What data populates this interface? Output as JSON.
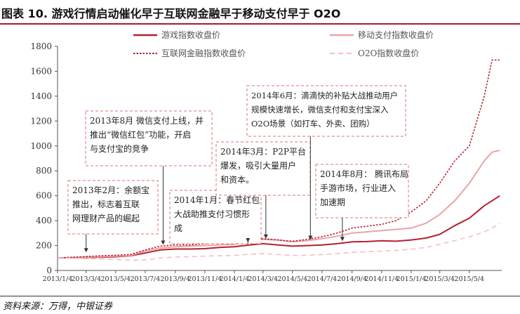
{
  "title": "图表 10. 游戏行情启动催化早于互联网金融早于移动支付早于 O2O",
  "source": "资料来源：万得，中银证券",
  "colors": {
    "accent": "#a71d2a",
    "game": "#b3202e",
    "mobile_pay": "#eaa4a4",
    "internet_finance": "#b3202e",
    "o2o": "#f2c0c0",
    "annotation_border": "#e07070"
  },
  "chart_data": {
    "type": "line",
    "title": "",
    "xlabel": "",
    "ylabel": "",
    "ylim": [
      0,
      1800
    ],
    "yticks": [
      0,
      200,
      400,
      600,
      800,
      1000,
      1200,
      1400,
      1600,
      1800
    ],
    "xlim": [
      "2013-01-04",
      "2015-07-10"
    ],
    "xticks": [
      "2013/1/4",
      "2013/3/4",
      "2013/5/4",
      "2013/7/4",
      "2013/9/4",
      "2013/11/4",
      "2014/1/4",
      "2014/3/4",
      "2014/5/4",
      "2014/7/4",
      "2014/9/4",
      "2014/11/4",
      "2015/1/4",
      "2015/3/4",
      "2015/5/4"
    ],
    "grid": false,
    "legend_placement": "top",
    "series": [
      {
        "name": "游戏指数收盘价",
        "style": "solid",
        "color": "#b3202e",
        "points": [
          [
            "2013-01-04",
            100
          ],
          [
            "2013-02-04",
            103
          ],
          [
            "2013-03-04",
            105
          ],
          [
            "2013-04-04",
            106
          ],
          [
            "2013-05-04",
            110
          ],
          [
            "2013-06-04",
            118
          ],
          [
            "2013-07-04",
            140
          ],
          [
            "2013-08-04",
            165
          ],
          [
            "2013-09-04",
            172
          ],
          [
            "2013-10-04",
            172
          ],
          [
            "2013-11-04",
            175
          ],
          [
            "2013-12-04",
            185
          ],
          [
            "2014-01-04",
            190
          ],
          [
            "2014-02-04",
            205
          ],
          [
            "2014-03-04",
            215
          ],
          [
            "2014-04-04",
            205
          ],
          [
            "2014-05-04",
            195
          ],
          [
            "2014-06-04",
            200
          ],
          [
            "2014-07-04",
            205
          ],
          [
            "2014-08-04",
            215
          ],
          [
            "2014-09-04",
            230
          ],
          [
            "2014-10-04",
            232
          ],
          [
            "2014-11-04",
            238
          ],
          [
            "2014-12-04",
            235
          ],
          [
            "2015-01-04",
            245
          ],
          [
            "2015-02-04",
            260
          ],
          [
            "2015-03-04",
            290
          ],
          [
            "2015-04-04",
            360
          ],
          [
            "2015-05-04",
            420
          ],
          [
            "2015-06-04",
            520
          ],
          [
            "2015-06-20",
            560
          ],
          [
            "2015-07-06",
            600
          ]
        ]
      },
      {
        "name": "移动支付指数收盘价",
        "style": "solid",
        "color": "#eaa4a4",
        "points": [
          [
            "2013-01-04",
            100
          ],
          [
            "2013-02-04",
            104
          ],
          [
            "2013-03-04",
            108
          ],
          [
            "2013-04-04",
            110
          ],
          [
            "2013-05-04",
            115
          ],
          [
            "2013-06-04",
            120
          ],
          [
            "2013-07-04",
            155
          ],
          [
            "2013-08-04",
            180
          ],
          [
            "2013-09-04",
            190
          ],
          [
            "2013-10-04",
            195
          ],
          [
            "2013-11-04",
            200
          ],
          [
            "2013-12-04",
            205
          ],
          [
            "2014-01-04",
            210
          ],
          [
            "2014-02-04",
            230
          ],
          [
            "2014-03-04",
            250
          ],
          [
            "2014-04-04",
            245
          ],
          [
            "2014-05-04",
            230
          ],
          [
            "2014-06-04",
            240
          ],
          [
            "2014-07-04",
            255
          ],
          [
            "2014-08-04",
            275
          ],
          [
            "2014-09-04",
            300
          ],
          [
            "2014-10-04",
            310
          ],
          [
            "2014-11-04",
            320
          ],
          [
            "2014-12-04",
            330
          ],
          [
            "2015-01-04",
            340
          ],
          [
            "2015-02-04",
            380
          ],
          [
            "2015-03-04",
            450
          ],
          [
            "2015-04-04",
            560
          ],
          [
            "2015-05-04",
            700
          ],
          [
            "2015-06-04",
            880
          ],
          [
            "2015-06-20",
            950
          ],
          [
            "2015-07-06",
            965
          ]
        ]
      },
      {
        "name": "互联网金融指数收盘价",
        "style": "dotted",
        "color": "#b3202e",
        "points": [
          [
            "2013-01-04",
            100
          ],
          [
            "2013-02-04",
            106
          ],
          [
            "2013-03-04",
            112
          ],
          [
            "2013-04-04",
            118
          ],
          [
            "2013-05-04",
            122
          ],
          [
            "2013-06-04",
            128
          ],
          [
            "2013-07-04",
            165
          ],
          [
            "2013-08-04",
            195
          ],
          [
            "2013-09-04",
            205
          ],
          [
            "2013-10-04",
            205
          ],
          [
            "2013-11-04",
            215
          ],
          [
            "2013-12-04",
            225
          ],
          [
            "2014-01-04",
            235
          ],
          [
            "2014-02-04",
            250
          ],
          [
            "2014-03-04",
            255
          ],
          [
            "2014-04-04",
            245
          ],
          [
            "2014-05-04",
            235
          ],
          [
            "2014-06-04",
            250
          ],
          [
            "2014-07-04",
            270
          ],
          [
            "2014-08-04",
            300
          ],
          [
            "2014-09-04",
            340
          ],
          [
            "2014-10-04",
            355
          ],
          [
            "2014-11-04",
            370
          ],
          [
            "2014-12-04",
            400
          ],
          [
            "2015-01-04",
            470
          ],
          [
            "2015-02-04",
            560
          ],
          [
            "2015-03-04",
            700
          ],
          [
            "2015-04-04",
            880
          ],
          [
            "2015-05-04",
            1000
          ],
          [
            "2015-06-04",
            1400
          ],
          [
            "2015-06-20",
            1690
          ],
          [
            "2015-07-06",
            1690
          ]
        ]
      },
      {
        "name": "O2O指数收盘价",
        "style": "dashed",
        "color": "#f2c0c0",
        "points": [
          [
            "2013-01-04",
            100
          ],
          [
            "2013-02-04",
            98
          ],
          [
            "2013-03-04",
            95
          ],
          [
            "2013-04-04",
            92
          ],
          [
            "2013-05-04",
            88
          ],
          [
            "2013-06-04",
            82
          ],
          [
            "2013-07-04",
            85
          ],
          [
            "2013-08-04",
            100
          ],
          [
            "2013-09-04",
            108
          ],
          [
            "2013-10-04",
            110
          ],
          [
            "2013-11-04",
            115
          ],
          [
            "2013-12-04",
            118
          ],
          [
            "2014-01-04",
            120
          ],
          [
            "2014-02-04",
            130
          ],
          [
            "2014-03-04",
            135
          ],
          [
            "2014-04-04",
            128
          ],
          [
            "2014-05-04",
            120
          ],
          [
            "2014-06-04",
            122
          ],
          [
            "2014-07-04",
            128
          ],
          [
            "2014-08-04",
            135
          ],
          [
            "2014-09-04",
            145
          ],
          [
            "2014-10-04",
            150
          ],
          [
            "2014-11-04",
            155
          ],
          [
            "2014-12-04",
            160
          ],
          [
            "2015-01-04",
            170
          ],
          [
            "2015-02-04",
            185
          ],
          [
            "2015-03-04",
            210
          ],
          [
            "2015-04-04",
            240
          ],
          [
            "2015-05-04",
            270
          ],
          [
            "2015-06-04",
            310
          ],
          [
            "2015-06-20",
            340
          ],
          [
            "2015-07-06",
            380
          ]
        ]
      }
    ],
    "annotations": [
      {
        "id": "ann1",
        "lines": [
          "2013年2月：余额宝",
          "推出，标志着互联",
          "网理财产品的崛起"
        ],
        "target": [
          "2013-03-04",
          140
        ]
      },
      {
        "id": "ann2",
        "lines": [
          "2013年8月 微信支付上线，并",
          "推出“微信红包”功能，开启",
          "与支付宝的竞争"
        ],
        "target": [
          "2013-08-10",
          200
        ]
      },
      {
        "id": "ann3",
        "lines": [
          "2014年1月：春节红包",
          "大战助推支付习惯形",
          "成"
        ],
        "target": [
          "2014-02-01",
          220
        ]
      },
      {
        "id": "ann4",
        "lines": [
          "2014年3月：P2P平台",
          "爆发，吸引大量用户",
          "和资本。"
        ],
        "target": [
          "2014-03-10",
          250
        ]
      },
      {
        "id": "ann5",
        "lines": [
          "2014年6月：滴滴快的补贴大战推动用户",
          "规模快速增长，微信支付和支付宝深入",
          "O2O场景（如打车、外卖、团购）"
        ],
        "target": [
          "2014-06-10",
          240
        ]
      },
      {
        "id": "ann6",
        "lines": [
          "2014年8月： 腾讯布局",
          "手游市场，行业进入",
          "加速期"
        ],
        "target": [
          "2014-08-15",
          230
        ]
      }
    ]
  }
}
